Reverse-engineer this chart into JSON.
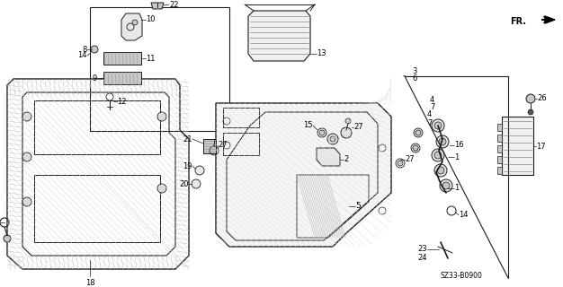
{
  "bg_color": "#ffffff",
  "diagram_code": "SZ33-B0900",
  "line_color": "#1a1a1a",
  "gray_fill": "#c8c8c8",
  "dark_gray": "#888888",
  "light_gray": "#e0e0e0"
}
